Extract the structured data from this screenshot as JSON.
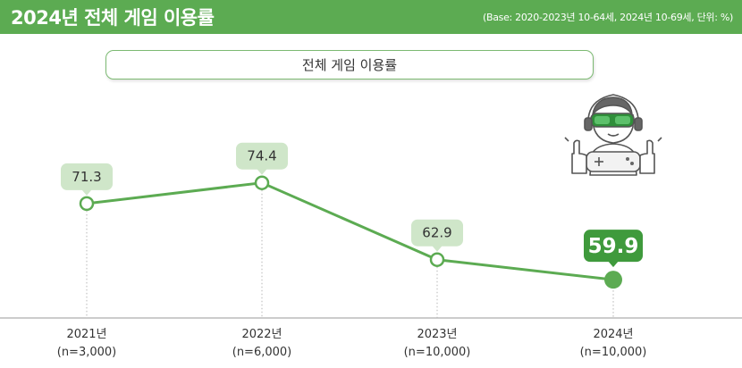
{
  "header": {
    "title": "2024년 전체 게임 이용률",
    "note": "(Base: 2020-2023년 10-64세, 2024년 10-69세, 단위: %)"
  },
  "colors": {
    "header_bg": "#5cab52",
    "line": "#5cab52",
    "label_bg": "#cfe6c9",
    "highlight": "#3f9a3c"
  },
  "chart_data": {
    "type": "line",
    "title": "",
    "xlabel": "",
    "ylabel": "",
    "categories": [
      "2021년",
      "2022년",
      "2023년",
      "2024년"
    ],
    "sample_sizes": [
      "(n=3,000)",
      "(n=6,000)",
      "(n=10,000)",
      "(n=10,000)"
    ],
    "series": [
      {
        "name": "전체 게임 이용률",
        "values": [
          71.3,
          74.4,
          62.9,
          59.9
        ]
      }
    ],
    "ylim": [
      40,
      90
    ],
    "grid": false,
    "legend": "top-center",
    "highlight_index": 3,
    "icon": "gamer-thumbs-up-icon"
  }
}
